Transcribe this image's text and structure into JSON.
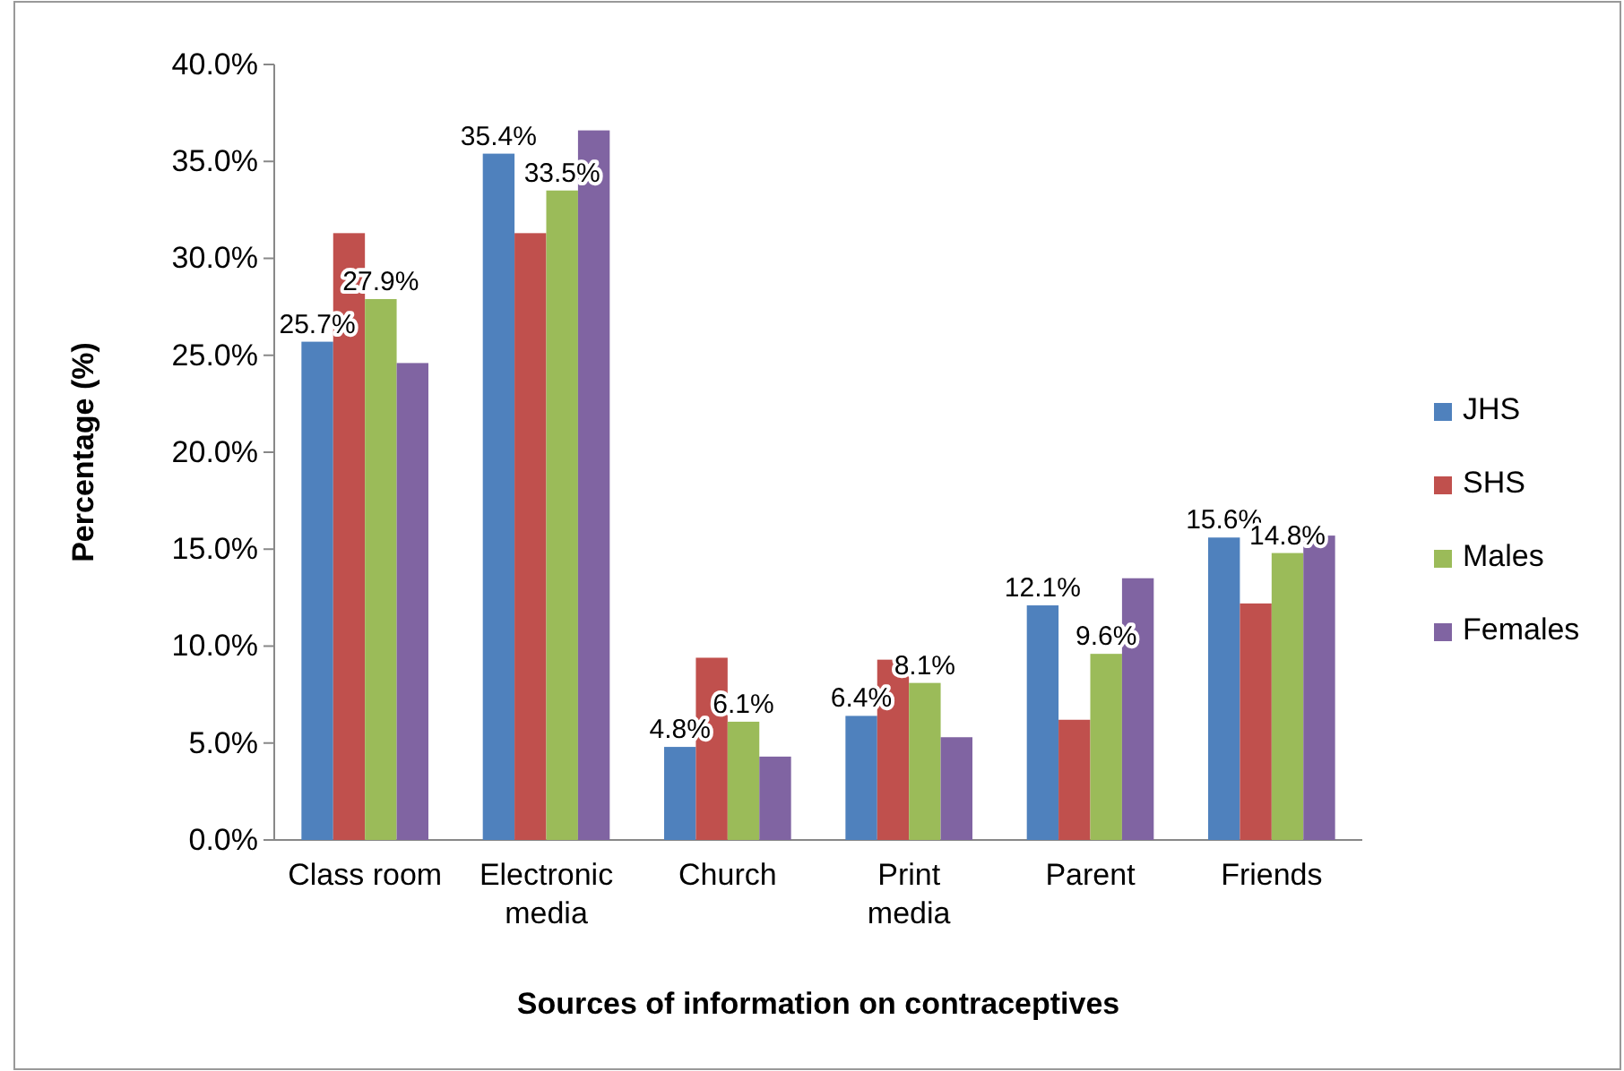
{
  "chart_data": {
    "type": "bar",
    "xlabel": "Sources of information on contraceptives",
    "ylabel": "Percentage (%)",
    "categories": [
      "Class room",
      "Electronic media",
      "Church",
      "Print media",
      "Parent",
      "Friends"
    ],
    "series": [
      {
        "name": "JHS",
        "color": "#4f81bd",
        "values": [
          25.7,
          35.4,
          4.8,
          6.4,
          12.1,
          15.6
        ],
        "value_labels": [
          "25.7%",
          "35.4%",
          "4.8%",
          "6.4%",
          "12.1%",
          "15.6%"
        ]
      },
      {
        "name": "SHS",
        "color": "#c0504d",
        "values": [
          31.3,
          31.3,
          9.4,
          9.3,
          6.2,
          12.2
        ]
      },
      {
        "name": "Males",
        "color": "#9bbb59",
        "values": [
          27.9,
          33.5,
          6.1,
          8.1,
          9.6,
          14.8
        ],
        "value_labels": [
          "27.9%",
          "33.5%",
          "6.1%",
          "8.1%",
          "9.6%",
          "14.8%"
        ]
      },
      {
        "name": "Females",
        "color": "#8064a2",
        "values": [
          24.6,
          36.6,
          4.3,
          5.3,
          13.5,
          15.7
        ]
      }
    ],
    "ylim": [
      0,
      40
    ],
    "yticks": [
      {
        "value": 0,
        "label": "0.0%"
      },
      {
        "value": 5,
        "label": "5.0%"
      },
      {
        "value": 10,
        "label": "10.0%"
      },
      {
        "value": 15,
        "label": "15.0%"
      },
      {
        "value": 20,
        "label": "20.0%"
      },
      {
        "value": 25,
        "label": "25.0%"
      },
      {
        "value": 30,
        "label": "30.0%"
      },
      {
        "value": 35,
        "label": "35.0%"
      },
      {
        "value": 40,
        "label": "40.0%"
      }
    ],
    "grid": false,
    "legend": "right"
  }
}
